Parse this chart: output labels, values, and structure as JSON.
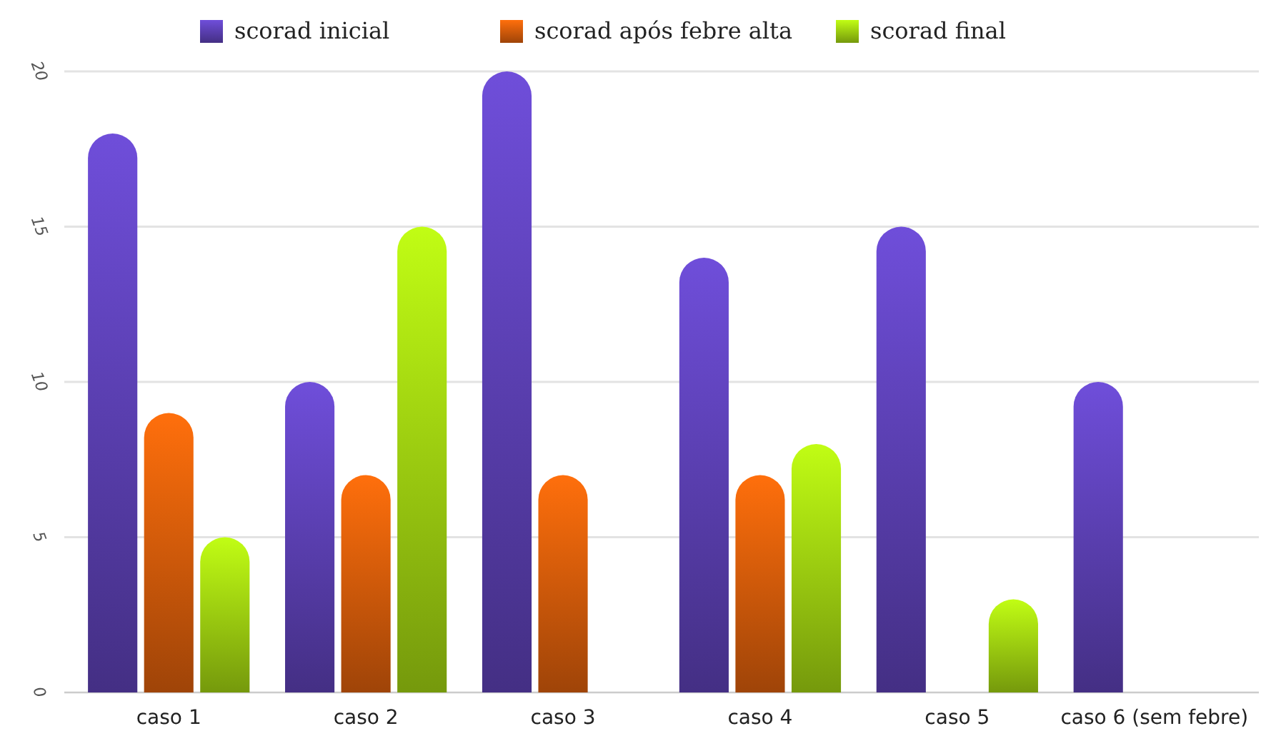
{
  "chart_data": {
    "type": "bar",
    "categories": [
      "caso 1",
      "caso 2",
      "caso 3",
      "caso 4",
      "caso 5",
      "caso 6 (sem febre)"
    ],
    "series": [
      {
        "name": "scorad inicial",
        "color": "#5a3fb0",
        "values": [
          18,
          10,
          20,
          14,
          15,
          10
        ]
      },
      {
        "name": "scorad após febre alta",
        "color": "#d35a0a",
        "values": [
          9,
          7,
          7,
          7,
          null,
          null
        ]
      },
      {
        "name": "scorad final",
        "color": "#9ccc10",
        "values": [
          5,
          15,
          null,
          8,
          3,
          null
        ]
      }
    ],
    "ylim": [
      0,
      20
    ],
    "yticks": [
      0,
      5,
      10,
      15,
      20
    ],
    "grid": "y",
    "legend": "top"
  }
}
